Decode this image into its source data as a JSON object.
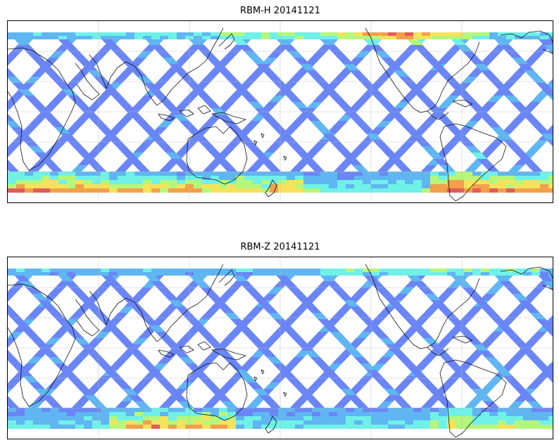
{
  "figure": {
    "panels": [
      {
        "title": "RBM-H 20141121",
        "colormap": [
          "#5a60ee",
          "#6a86f6",
          "#5fb6f2",
          "#6ff1e8",
          "#b5f77a",
          "#f6e25b",
          "#f3a04b",
          "#e25b5b"
        ]
      },
      {
        "title": "RBM-Z 20141121",
        "colormap": [
          "#5a60ee",
          "#6a86f6",
          "#5fb6f2",
          "#6ff1e8",
          "#b5f77a",
          "#f6e25b",
          "#f3a04b",
          "#e25b5b"
        ]
      }
    ]
  },
  "chart_data": [
    {
      "type": "heatmap",
      "title": "RBM-H 20141121",
      "projection": "equirectangular",
      "lon_range": [
        30,
        390
      ],
      "lat_range": [
        -90,
        90
      ],
      "swath_pattern": "diagonal satellite swaths",
      "hotspots": [
        {
          "region": "southern ocean high latitudes",
          "level": "high"
        },
        {
          "region": "north pacific / north atlantic band",
          "level": "high"
        },
        {
          "region": "south atlantic",
          "level": "high"
        }
      ]
    },
    {
      "type": "heatmap",
      "title": "RBM-Z 20141121",
      "projection": "equirectangular",
      "lon_range": [
        30,
        390
      ],
      "lat_range": [
        -90,
        90
      ],
      "swath_pattern": "diagonal satellite swaths",
      "hotspots": [
        {
          "region": "south of australia",
          "level": "medium-high"
        },
        {
          "region": "south atlantic",
          "level": "medium"
        }
      ]
    }
  ]
}
